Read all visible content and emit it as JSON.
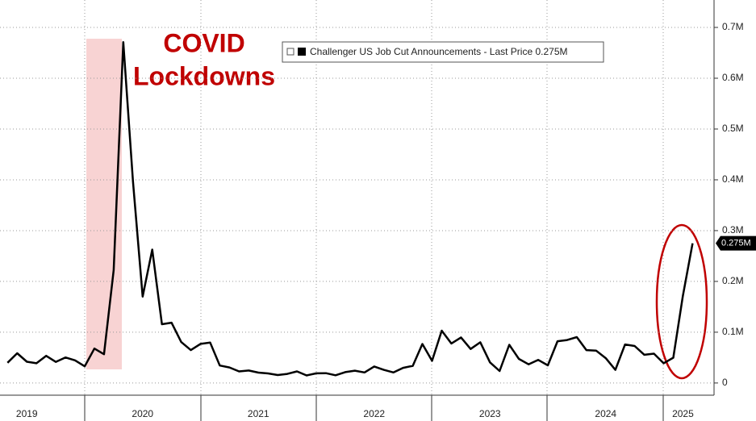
{
  "chart_data": {
    "type": "line",
    "annotation_lines": [
      "COVID",
      "Lockdowns"
    ],
    "last_value_label": "0.275M",
    "categories": [
      null,
      null,
      "2019",
      null,
      null,
      null,
      null,
      null,
      null,
      null,
      null,
      null,
      null,
      null,
      "2020",
      null,
      null,
      null,
      null,
      null,
      null,
      null,
      null,
      null,
      null,
      null,
      "2021",
      null,
      null,
      null,
      null,
      null,
      null,
      null,
      null,
      null,
      null,
      null,
      "2022",
      null,
      null,
      null,
      null,
      null,
      null,
      null,
      null,
      null,
      null,
      null,
      "2023",
      null,
      null,
      null,
      null,
      null,
      null,
      null,
      null,
      null,
      null,
      null,
      "2024",
      null,
      null,
      null,
      null,
      null,
      null,
      null,
      "2025",
      null
    ],
    "series": [
      {
        "name": "Challenger US Job Cut Announcements - Last Price 0.275M",
        "color": "#000000",
        "values": [
          0.0398,
          0.0586,
          0.0419,
          0.0388,
          0.0535,
          0.0416,
          0.0503,
          0.0446,
          0.0328,
          0.0677,
          0.0567,
          0.2223,
          0.6711,
          0.397,
          0.1702,
          0.2626,
          0.1158,
          0.1188,
          0.0807,
          0.0648,
          0.077,
          0.0796,
          0.0345,
          0.0306,
          0.0229,
          0.0246,
          0.0205,
          0.0189,
          0.0157,
          0.0179,
          0.0228,
          0.0149,
          0.0191,
          0.0193,
          0.0152,
          0.0214,
          0.0243,
          0.0207,
          0.0325,
          0.0258,
          0.0207,
          0.0299,
          0.0338,
          0.0768,
          0.0437,
          0.103,
          0.0778,
          0.0897,
          0.0669,
          0.0801,
          0.0407,
          0.0237,
          0.0752,
          0.0475,
          0.0368,
          0.0455,
          0.0348,
          0.0823,
          0.0846,
          0.0903,
          0.0648,
          0.0638,
          0.0488,
          0.0259,
          0.0759,
          0.0728,
          0.0556,
          0.0577,
          0.0388,
          0.0498,
          0.172,
          0.275
        ]
      }
    ],
    "ylim": [
      -0.024,
      0.754
    ],
    "yticks": [
      0,
      {
        "value": 0.1,
        "label": "0.1M"
      },
      {
        "value": 0.2,
        "label": "0.2M"
      },
      {
        "value": 0.3,
        "label": "0.3M"
      },
      {
        "value": 0.4,
        "label": "0.4M"
      },
      {
        "value": 0.5,
        "label": "0.5M"
      },
      {
        "value": 0.6,
        "label": "0.6M"
      },
      {
        "value": 0.7,
        "label": "0.7M"
      }
    ],
    "grid": true
  }
}
